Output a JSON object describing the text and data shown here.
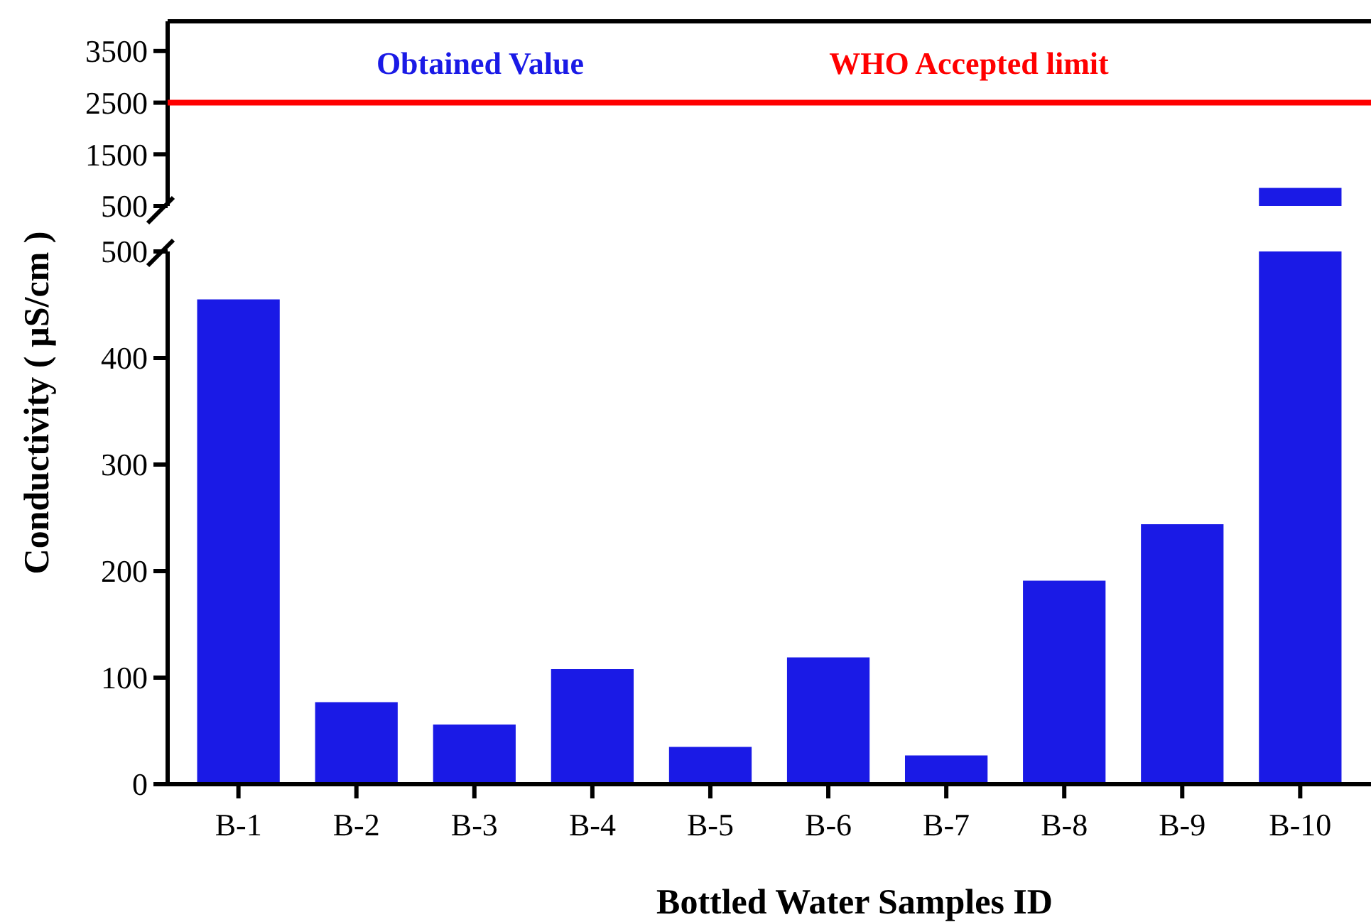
{
  "chart_data": [
    {
      "type": "bar",
      "categories": [
        null,
        null,
        null,
        null,
        null,
        null,
        null,
        null,
        null,
        null
      ],
      "tick_labels": "y",
      "ylim": [
        500,
        4075
      ],
      "yticks": [
        500,
        1500,
        2500,
        3500
      ],
      "legend": "top",
      "series": [
        {
          "name": "Obtained Value",
          "color": "#1a1ae6",
          "values": [
            null,
            null,
            null,
            null,
            null,
            null,
            null,
            null,
            null,
            850
          ]
        }
      ],
      "ref_lines": [
        {
          "axis": "y",
          "value": 2500,
          "label": "WHO Accepted  limit",
          "color": "#ff0000"
        }
      ]
    },
    {
      "type": "bar",
      "categories": [
        "B-1",
        "B-2",
        "B-3",
        "B-4",
        "B-5",
        "B-6",
        "B-7",
        "B-8",
        "B-9",
        "B-10"
      ],
      "ylim": [
        0,
        500
      ],
      "yticks": [
        0,
        100,
        200,
        300,
        400,
        500
      ],
      "ylabel": "Conductivity ( µS/cm )",
      "xlabel": "Bottled Water Samples ID",
      "series": [
        {
          "color": "#1a1ae6",
          "values": [
            455,
            77,
            56,
            108,
            35,
            119,
            27,
            191,
            244,
            500
          ]
        }
      ]
    }
  ]
}
